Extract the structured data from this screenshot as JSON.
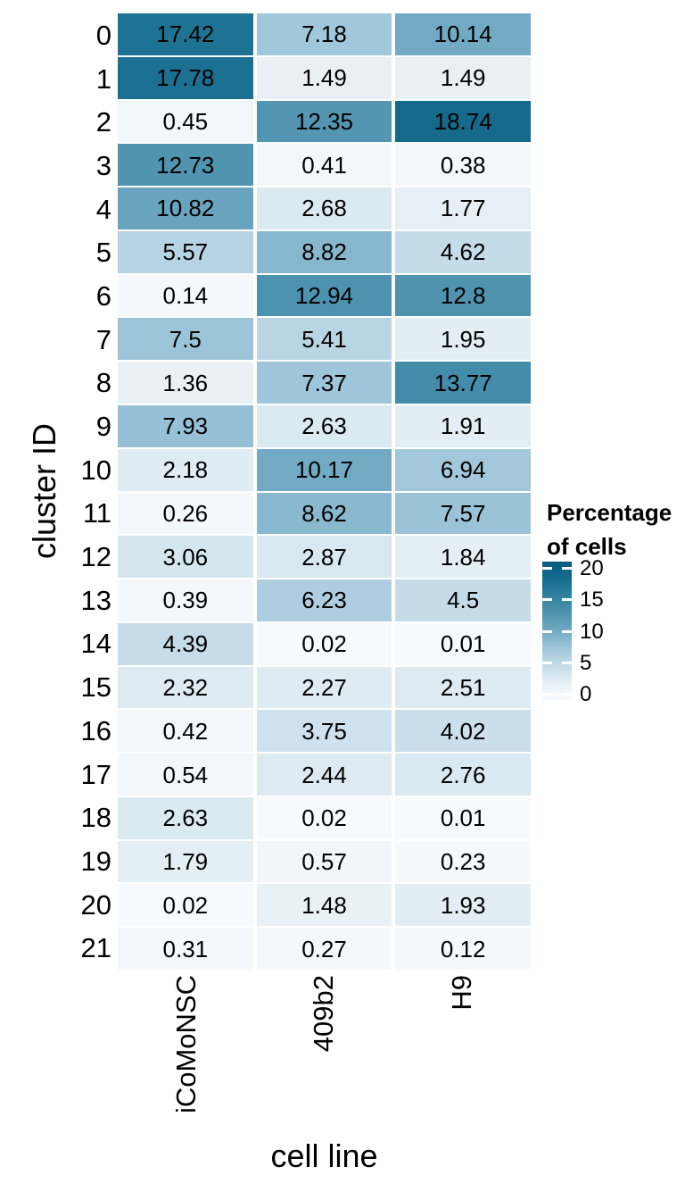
{
  "figure": {
    "background": "#ffffff",
    "text_color": "#000000"
  },
  "chart_data": {
    "type": "heatmap",
    "title": "",
    "xlabel": "cell line",
    "ylabel": "cluster ID",
    "x_categories": [
      "iCoMoNSC",
      "409b2",
      "H9"
    ],
    "y_categories": [
      "0",
      "1",
      "2",
      "3",
      "4",
      "5",
      "6",
      "7",
      "8",
      "9",
      "10",
      "11",
      "12",
      "13",
      "14",
      "15",
      "16",
      "17",
      "18",
      "19",
      "20",
      "21"
    ],
    "values": [
      [
        17.42,
        7.18,
        10.14
      ],
      [
        17.78,
        1.49,
        1.49
      ],
      [
        0.45,
        12.35,
        18.74
      ],
      [
        12.73,
        0.41,
        0.38
      ],
      [
        10.82,
        2.68,
        1.77
      ],
      [
        5.57,
        8.82,
        4.62
      ],
      [
        0.14,
        12.94,
        12.8
      ],
      [
        7.5,
        5.41,
        1.95
      ],
      [
        1.36,
        7.37,
        13.77
      ],
      [
        7.93,
        2.63,
        1.91
      ],
      [
        2.18,
        10.17,
        6.94
      ],
      [
        0.26,
        8.62,
        7.57
      ],
      [
        3.06,
        2.87,
        1.84
      ],
      [
        0.39,
        6.23,
        4.5
      ],
      [
        4.39,
        0.02,
        0.01
      ],
      [
        2.32,
        2.27,
        2.51
      ],
      [
        0.42,
        3.75,
        4.02
      ],
      [
        0.54,
        2.44,
        2.76
      ],
      [
        2.63,
        0.02,
        0.01
      ],
      [
        1.79,
        0.57,
        0.23
      ],
      [
        0.02,
        1.48,
        1.93
      ],
      [
        0.31,
        0.27,
        0.12
      ]
    ],
    "colormap": {
      "stops": [
        {
          "v": 0,
          "c": "#f7fafc"
        },
        {
          "v": 2.5,
          "c": "#ddeaf2"
        },
        {
          "v": 5,
          "c": "#bfd8e6"
        },
        {
          "v": 7.5,
          "c": "#9cc4d8"
        },
        {
          "v": 10,
          "c": "#74abc4"
        },
        {
          "v": 12.5,
          "c": "#5295b1"
        },
        {
          "v": 15,
          "c": "#3786a3"
        },
        {
          "v": 17.5,
          "c": "#1d7294"
        },
        {
          "v": 20,
          "c": "#0c6284"
        },
        {
          "v": 21,
          "c": "#085a7b"
        }
      ]
    },
    "legend": {
      "title_lines": [
        "Percentage",
        "of cells"
      ],
      "tick_labels": [
        "20",
        "15",
        "10",
        "5",
        "0"
      ],
      "tick_values": [
        20,
        15,
        10,
        5,
        0
      ],
      "bar_top_value": 21.05,
      "bar_bottom_value": -0.85,
      "position": "right"
    },
    "axis_ranges": {
      "fill_min": 0,
      "fill_max": 20
    },
    "grid": false
  }
}
